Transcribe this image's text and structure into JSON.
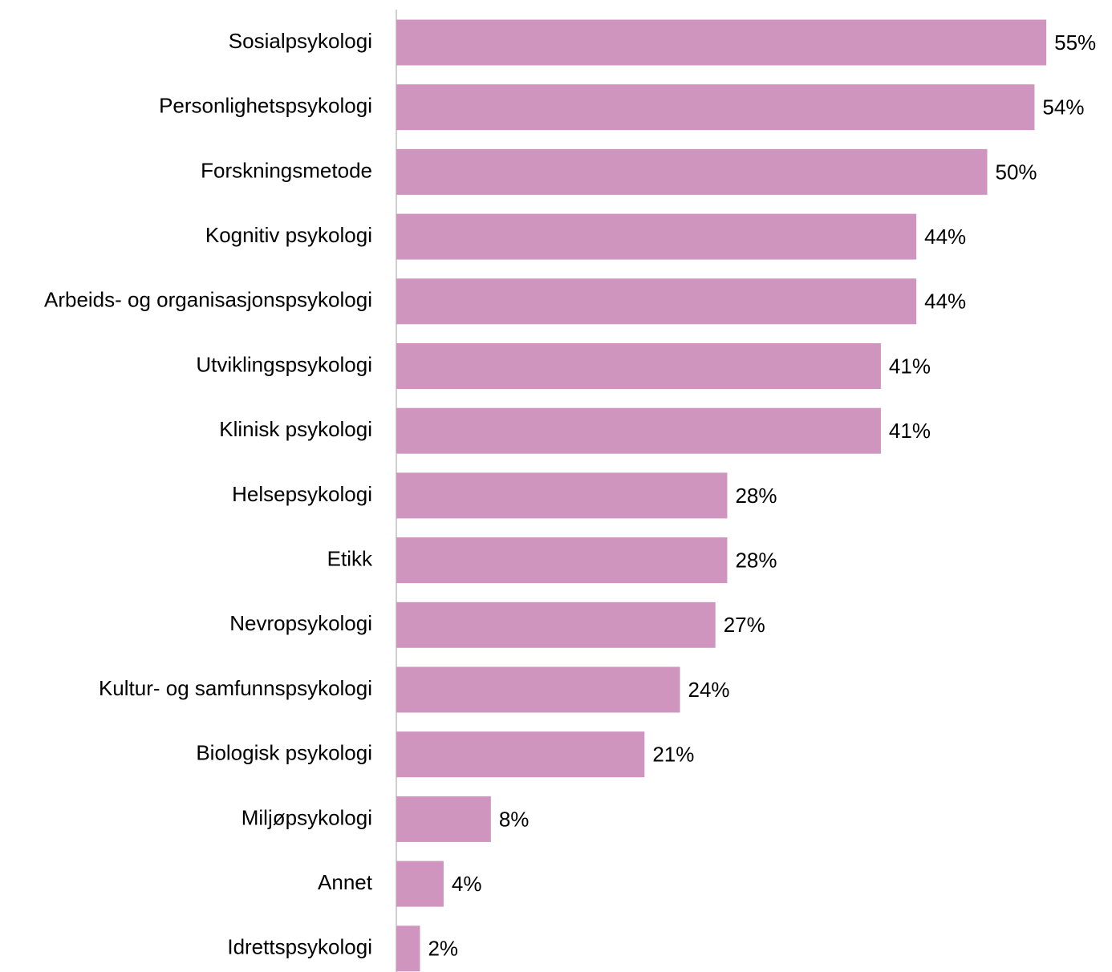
{
  "chart_data": {
    "type": "barh",
    "categories": [
      "Sosialpsykologi",
      "Personlighetspsykologi",
      "Forskningsmetode",
      "Kognitiv psykologi",
      "Arbeids- og organisasjonspsykologi",
      "Utviklingspsykologi",
      "Klinisk psykologi",
      "Helsepsykologi",
      "Etikk",
      "Nevropsykologi",
      "Kultur- og samfunnspsykologi",
      "Biologisk psykologi",
      "Miljøpsykologi",
      "Annet",
      "Idrettspsykologi"
    ],
    "values": [
      55,
      54,
      50,
      44,
      44,
      41,
      41,
      28,
      28,
      27,
      24,
      21,
      8,
      4,
      2
    ],
    "value_labels": [
      "55%",
      "54%",
      "50%",
      "44%",
      "44%",
      "41%",
      "41%",
      "28%",
      "28%",
      "27%",
      "24%",
      "21%",
      "8%",
      "4%",
      "2%"
    ],
    "color": "#cf95bf"
  }
}
